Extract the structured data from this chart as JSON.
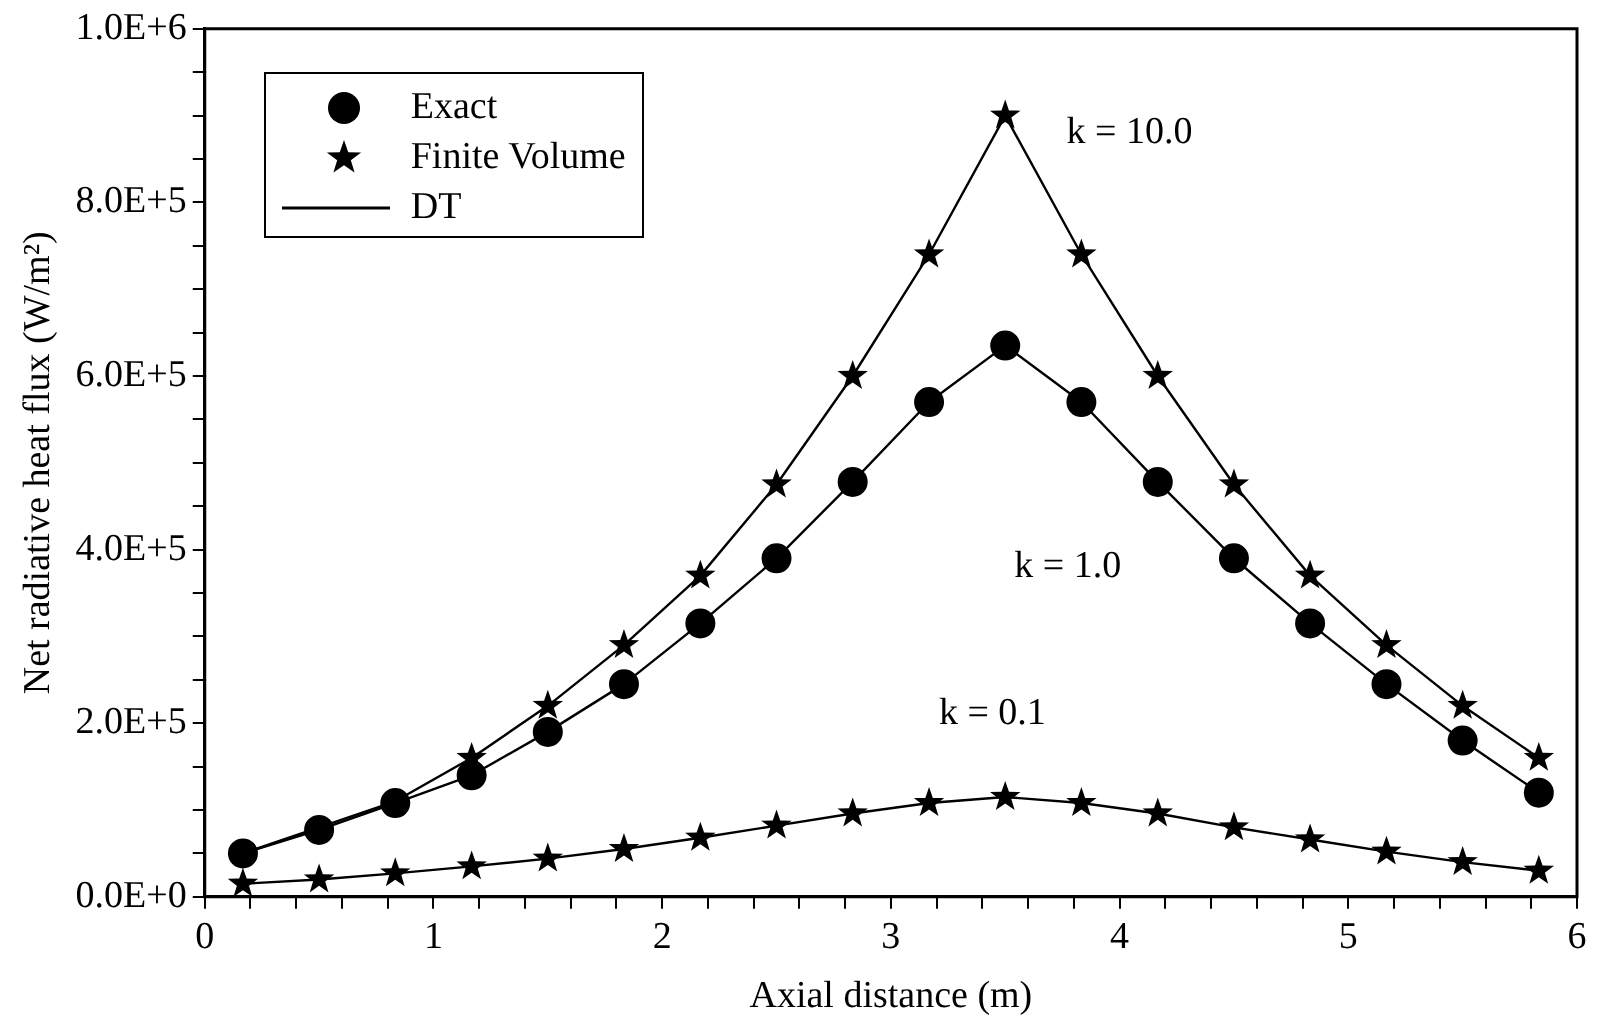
{
  "chart_data": {
    "type": "line",
    "xlabel": "Axial distance (m)",
    "ylabel": "Net radiative heat flux (W/m²)",
    "x": [
      0.167,
      0.5,
      0.833,
      1.167,
      1.5,
      1.833,
      2.167,
      2.5,
      2.833,
      3.167,
      3.5,
      3.833,
      4.167,
      4.5,
      4.833,
      5.167,
      5.5,
      5.833
    ],
    "series": [
      {
        "name": "Exact",
        "type": "scatter",
        "marker": "circle",
        "color": "#000000",
        "values": [
          50000,
          77000,
          108000,
          140000,
          190000,
          245000,
          315000,
          390000,
          478000,
          570000,
          635000,
          570000,
          478000,
          390000,
          315000,
          245000,
          180000,
          120000
        ]
      },
      {
        "name": "Finite Volume",
        "type": "scatter",
        "marker": "star",
        "color": "#000000",
        "values": [
          null,
          null,
          null,
          160000,
          220000,
          290000,
          370000,
          475000,
          600000,
          740000,
          900000,
          740000,
          600000,
          475000,
          370000,
          290000,
          220000,
          160000
        ]
      },
      {
        "type": "scatter",
        "marker": "star",
        "color": "#000000",
        "values": [
          15000,
          20000,
          27000,
          35000,
          44000,
          55000,
          68000,
          82000,
          96000,
          108000,
          115000,
          108000,
          96000,
          80000,
          66000,
          52000,
          40000,
          30000
        ]
      },
      {
        "name": "DT",
        "type": "line",
        "marker": "none",
        "line_style": "solid",
        "color": "#000000",
        "values": [
          50000,
          80000,
          110000,
          160000,
          220000,
          290000,
          370000,
          475000,
          600000,
          740000,
          900000,
          740000,
          600000,
          475000,
          370000,
          290000,
          220000,
          160000
        ]
      },
      {
        "type": "line",
        "marker": "none",
        "line_style": "solid",
        "color": "#000000",
        "values": [
          50000,
          77000,
          108000,
          140000,
          190000,
          245000,
          315000,
          390000,
          478000,
          570000,
          635000,
          570000,
          478000,
          390000,
          315000,
          245000,
          180000,
          120000
        ]
      },
      {
        "type": "line",
        "marker": "none",
        "line_style": "solid",
        "color": "#000000",
        "values": [
          15000,
          20000,
          27000,
          35000,
          44000,
          55000,
          68000,
          82000,
          96000,
          108000,
          115000,
          108000,
          96000,
          80000,
          66000,
          52000,
          40000,
          30000
        ]
      }
    ],
    "xlim": [
      0,
      6
    ],
    "xticks": [
      0,
      {
        "value": 0.2,
        "label": null
      },
      {
        "value": 0.4,
        "label": null
      },
      {
        "value": 0.6,
        "label": null
      },
      {
        "value": 0.8,
        "label": null
      },
      1,
      {
        "value": 1.2,
        "label": null
      },
      {
        "value": 1.4,
        "label": null
      },
      {
        "value": 1.6,
        "label": null
      },
      {
        "value": 1.8,
        "label": null
      },
      2,
      {
        "value": 2.2,
        "label": null
      },
      {
        "value": 2.4,
        "label": null
      },
      {
        "value": 2.6,
        "label": null
      },
      {
        "value": 2.8,
        "label": null
      },
      3,
      {
        "value": 3.2,
        "label": null
      },
      {
        "value": 3.4,
        "label": null
      },
      {
        "value": 3.6,
        "label": null
      },
      {
        "value": 3.8,
        "label": null
      },
      4,
      {
        "value": 4.2,
        "label": null
      },
      {
        "value": 4.4,
        "label": null
      },
      {
        "value": 4.6,
        "label": null
      },
      {
        "value": 4.8,
        "label": null
      },
      5,
      {
        "value": 5.2,
        "label": null
      },
      {
        "value": 5.4,
        "label": null
      },
      {
        "value": 5.6,
        "label": null
      },
      {
        "value": 5.8,
        "label": null
      },
      6
    ],
    "ylim": [
      0,
      1000000
    ],
    "yticks": [
      {
        "value": 0,
        "label": "0.0E+0"
      },
      {
        "value": 50000,
        "label": null
      },
      {
        "value": 100000,
        "label": null
      },
      {
        "value": 150000,
        "label": null
      },
      {
        "value": 200000,
        "label": "2.0E+5"
      },
      {
        "value": 250000,
        "label": null
      },
      {
        "value": 300000,
        "label": null
      },
      {
        "value": 350000,
        "label": null
      },
      {
        "value": 400000,
        "label": "4.0E+5"
      },
      {
        "value": 450000,
        "label": null
      },
      {
        "value": 500000,
        "label": null
      },
      {
        "value": 550000,
        "label": null
      },
      {
        "value": 600000,
        "label": "6.0E+5"
      },
      {
        "value": 650000,
        "label": null
      },
      {
        "value": 700000,
        "label": null
      },
      {
        "value": 750000,
        "label": null
      },
      {
        "value": 800000,
        "label": "8.0E+5"
      },
      {
        "value": 850000,
        "label": null
      },
      {
        "value": 900000,
        "label": null
      },
      {
        "value": 950000,
        "label": null
      },
      {
        "value": 1000000,
        "label": "1.0E+6"
      }
    ],
    "annotations": [
      "k = 10.0",
      "k = 1.0",
      "k = 0.1"
    ],
    "grid": false,
    "legend": "top left"
  }
}
